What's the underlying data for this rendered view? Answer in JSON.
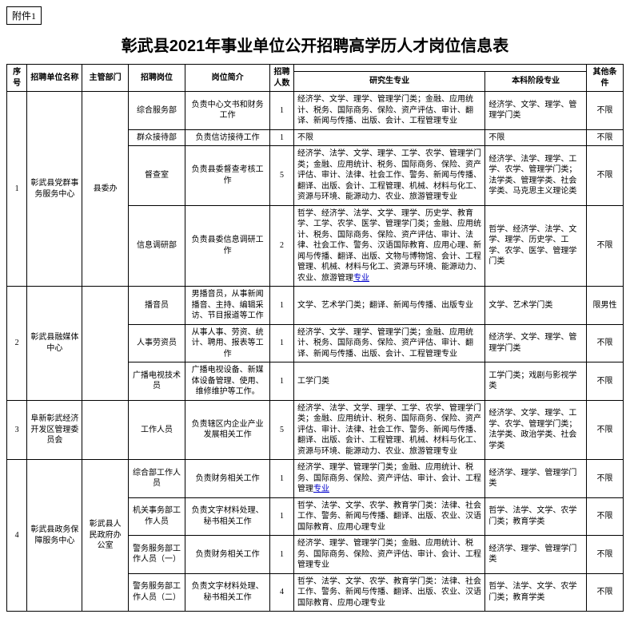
{
  "attachment_label": "附件1",
  "title": "彰武县2021年事业单位公开招聘高学历人才岗位信息表",
  "headers": {
    "seq": "序号",
    "unit": "招聘单位名称",
    "dept": "主管部门",
    "post": "招聘岗位",
    "desc": "岗位简介",
    "num": "招聘人数",
    "grad": "研究生专业",
    "under": "本科阶段专业",
    "other": "其他条件"
  },
  "rows": [
    {
      "seq": "1",
      "unit": "彰武县党群事务服务中心",
      "dept": "县委办",
      "posts": [
        {
          "post": "综合服务部",
          "desc": "负责中心文书和财务工作",
          "num": "1",
          "grad": "经济学、文学、理学、管理学门类；金融、应用统计、税务、国际商务、保险、资产评估、审计、翻译、新闻与传播、出版、会计、工程管理专业",
          "under": "经济学、文学、理学、管理学门类",
          "other": "不限"
        },
        {
          "post": "群众接待部",
          "desc": "负责信访接待工作",
          "num": "1",
          "grad": "不限",
          "under": "不限",
          "other": "不限"
        },
        {
          "post": "督查室",
          "desc": "负责县委督查考核工作",
          "num": "5",
          "grad": "经济学、法学、文学、理学、工学、农学、管理学门类；金融、应用统计、税务、国际商务、保险、资产评估、审计、法律、社会工作、警务、新闻与传播、翻译、出版、会计、工程管理、机械、材料与化工、资源与环境、能源动力、农业、旅游管理专业",
          "under": "经济学、法学、理学、工学、农学、管理学门类；法学类、管理学类、社会学类、马克思主义理论类",
          "other": "不限"
        },
        {
          "post": "信息调研部",
          "desc": "负责县委信息调研工作",
          "num": "2",
          "grad": "哲学、经济学、法学、文学、理学、历史学、教育学、工学、农学、医学、管理学门类；金融、应用统计、税务、国际商务、保险、资产评估、审计、法律、社会工作、警务、汉语国际教育、应用心理、新闻与传播、翻译、出版、文物与博物馆、会计、工程管理、机械、材料与化工、资源与环境、能源动力、农业、旅游管理专业",
          "grad_link": "专业",
          "under": "哲学、经济学、法学、文学、理学、历史学、工学、农学、医学、管理学门类",
          "other": "不限"
        }
      ]
    },
    {
      "seq": "2",
      "unit": "彰武县融媒体中心",
      "dept": "",
      "posts": [
        {
          "post": "播音员",
          "desc": "男播音员，从事新闻播音、主持、编辑采访、节目报道等工作",
          "num": "1",
          "grad": "文学、艺术学门类；翻译、新闻与传播、出版专业",
          "under": "文学、艺术学门类",
          "other": "限男性"
        },
        {
          "post": "人事劳资员",
          "desc": "从事人事、劳资、统计、聘用、报表等工作",
          "num": "1",
          "grad": "经济学、文学、理学、管理学门类；金融、应用统计、税务、国际商务、保险、资产评估、审计、翻译、新闻与传播、出版、会计、工程管理专业",
          "under": "经济学、文学、理学、管理学门类",
          "other": "不限"
        },
        {
          "post": "广播电视技术员",
          "desc": "广播电视设备、新媒体设备管理、使用、维修维护等工作。",
          "num": "1",
          "grad": "工学门类",
          "under": "工学门类；戏剧与影视学类",
          "other": "不限"
        }
      ]
    },
    {
      "seq": "3",
      "unit": "阜新彰武经济开发区管理委员会",
      "dept": "",
      "posts": [
        {
          "post": "工作人员",
          "desc": "负责辖区内企业产业发展相关工作",
          "num": "5",
          "grad": "经济学、法学、文学、理学、工学、农学、管理学门类；金融、应用统计、税务、国际商务、保险、资产评估、审计、法律、社会工作、警务、新闻与传播、翻译、出版、会计、工程管理、机械、材料与化工、资源与环境、能源动力、农业、旅游管理专业",
          "under": "经济学、文学、理学、工学、农学、管理学门类；法学类、政治学类、社会学类",
          "other": "不限"
        }
      ]
    },
    {
      "seq": "4",
      "unit": "彰武县政务保障服务中心",
      "dept": "彰武县人民政府办公室",
      "posts": [
        {
          "post": "综合部工作人员",
          "desc": "负责财务相关工作",
          "num": "1",
          "grad": "经济学、理学、管理学门类；金融、应用统计、税务、国际商务、保险、资产评估、审计、会计、工程管理专业",
          "grad_link": "专业",
          "under": "经济学、理学、管理学门类",
          "other": "不限"
        },
        {
          "post": "机关事务部工作人员",
          "desc": "负责文字材料处理、秘书相关工作",
          "num": "1",
          "grad": "哲学、法学、文学、农学、教育学门类：法律、社会工作、警务、新闻与传播、翻译、出版、农业、汉语国际教育、应用心理专业",
          "under": "哲学、法学、文学、农学门类；教育学类",
          "other": "不限"
        },
        {
          "post": "警务服务部工作人员（一）",
          "desc": "负责财务相关工作",
          "num": "1",
          "grad": "经济学、理学、管理学门类；金融、应用统计、税务、国际商务、保险、资产评估、审计、会计、工程管理专业",
          "under": "经济学、理学、管理学门类",
          "other": "不限"
        },
        {
          "post": "警务服务部工作人员（二）",
          "desc": "负责文字材料处理、秘书相关工作",
          "num": "4",
          "grad": "哲学、法学、文学、农学、教育学门类：法律、社会工作、警务、新闻与传播、翻译、出版、农业、汉语国际教育、应用心理专业",
          "under": "哲学、法学、文学、农学门类；教育学类",
          "other": "不限"
        }
      ]
    }
  ]
}
